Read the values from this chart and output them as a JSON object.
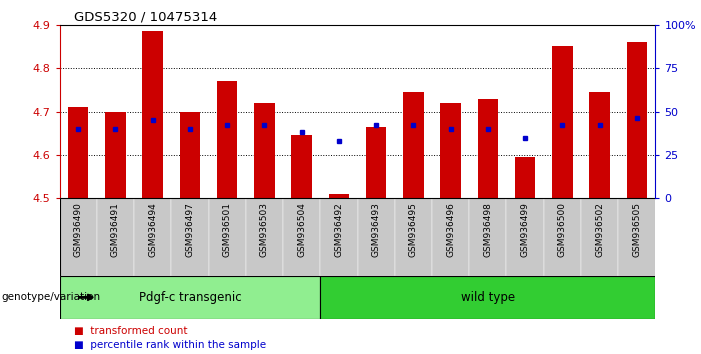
{
  "title": "GDS5320 / 10475314",
  "samples": [
    "GSM936490",
    "GSM936491",
    "GSM936494",
    "GSM936497",
    "GSM936501",
    "GSM936503",
    "GSM936504",
    "GSM936492",
    "GSM936493",
    "GSM936495",
    "GSM936496",
    "GSM936498",
    "GSM936499",
    "GSM936500",
    "GSM936502",
    "GSM936505"
  ],
  "transformed_count": [
    4.71,
    4.7,
    4.885,
    4.7,
    4.77,
    4.72,
    4.645,
    4.51,
    4.665,
    4.745,
    4.72,
    4.73,
    4.595,
    4.85,
    4.745,
    4.86
  ],
  "percentile_rank": [
    40,
    40,
    45,
    40,
    42,
    42,
    38,
    33,
    42,
    42,
    40,
    40,
    35,
    42,
    42,
    46
  ],
  "ylim": [
    4.5,
    4.9
  ],
  "yticks": [
    4.5,
    4.6,
    4.7,
    4.8,
    4.9
  ],
  "right_yticks": [
    0,
    25,
    50,
    75,
    100
  ],
  "right_ylabels": [
    "0",
    "25",
    "50",
    "75",
    "100%"
  ],
  "groups": [
    {
      "label": "Pdgf-c transgenic",
      "start": 0,
      "end": 7,
      "color": "#90EE90"
    },
    {
      "label": "wild type",
      "start": 7,
      "end": 16,
      "color": "#32CD32"
    }
  ],
  "bar_color": "#CC0000",
  "percentile_color": "#0000CC",
  "bar_width": 0.55,
  "tick_label_color": "#CC0000",
  "right_tick_color": "#0000CC",
  "xlabel_left": "genotype/variation",
  "legend_items": [
    {
      "label": "transformed count",
      "color": "#CC0000"
    },
    {
      "label": "percentile rank within the sample",
      "color": "#0000CC"
    }
  ]
}
